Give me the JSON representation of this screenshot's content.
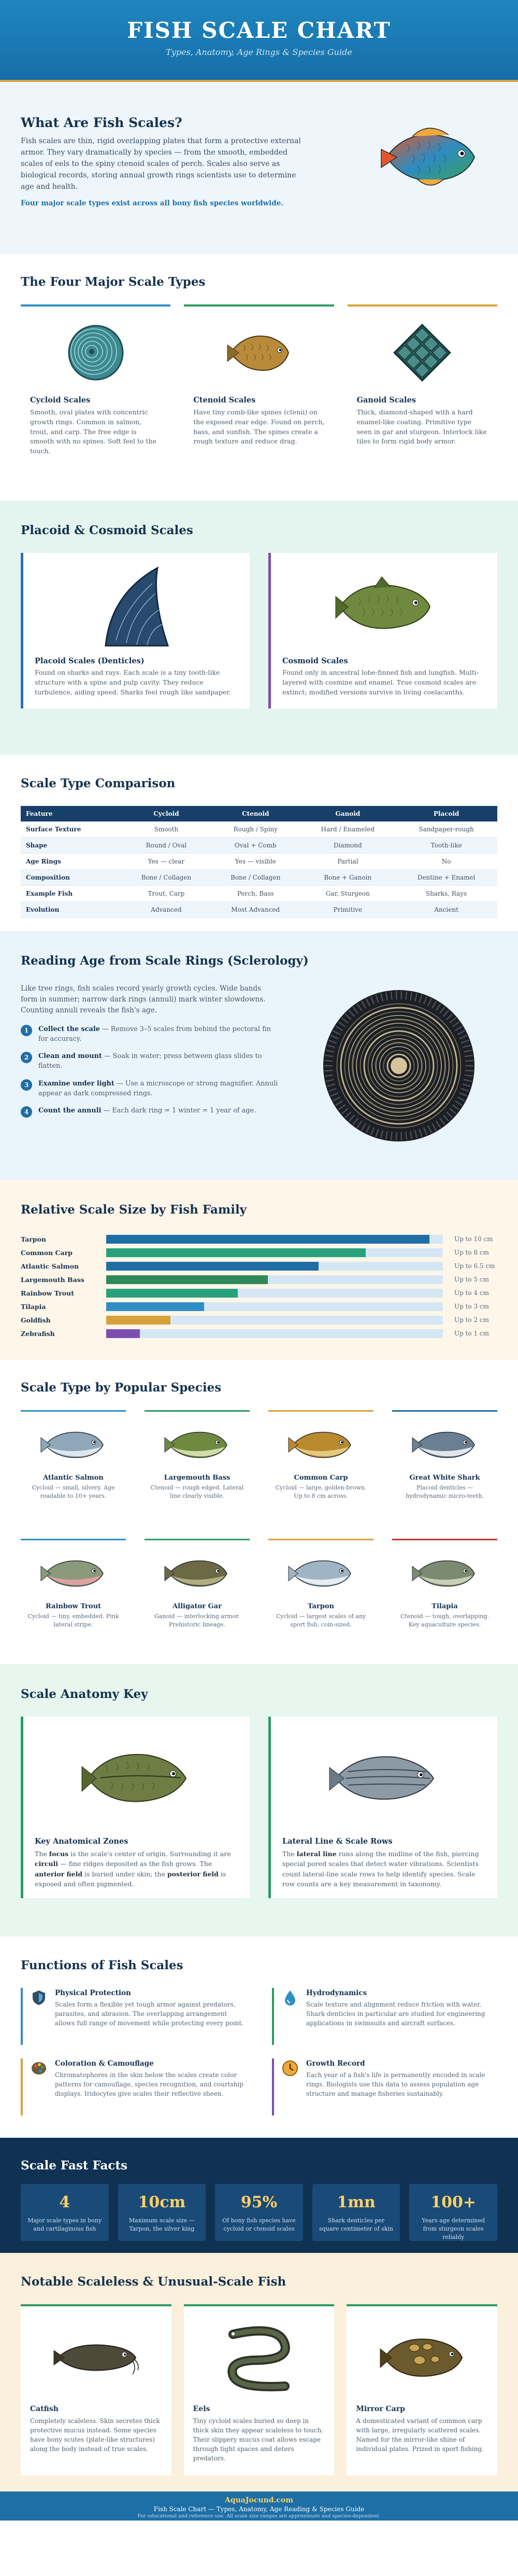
{
  "header": {
    "title": "FISH SCALE CHART",
    "subtitle": "Types, Anatomy, Age Rings & Species Guide"
  },
  "intro": {
    "title": "What Are Fish Scales?",
    "text": "Fish scales are thin, rigid overlapping plates that form a protective external armor. They vary dramatically by species — from the smooth, embedded scales of eels to the spiny ctenoid scales of perch. Scales also serve as biological records, storing annual growth rings scientists use to determine age and health.",
    "note": "Four major scale types exist across all bony fish species worldwide.",
    "image": "tropical-fish-illustration"
  },
  "types": {
    "title": "The Four Major Scale Types",
    "cards": [
      {
        "name": "Cycloid Scales",
        "desc": "Smooth, oval plates with concentric growth rings. Common in salmon, trout, and carp. The free edge is smooth with no spines. Soft feel to the touch.",
        "color": "#2f8fc4",
        "icon": "cycloid-scale-icon"
      },
      {
        "name": "Ctenoid Scales",
        "desc": "Have tiny comb-like spines (ctenii) on the exposed rear edge. Found on perch, bass, and sunfish. The spines create a rough texture and reduce drag.",
        "color": "#2e9a64",
        "icon": "ctenoid-fish-icon"
      },
      {
        "name": "Ganoid Scales",
        "desc": "Thick, diamond-shaped with a hard enamel-like coating. Primitive type seen in gar and sturgeon. Interlock like tiles to form rigid body armor.",
        "color": "#d7a23c",
        "icon": "ganoid-scale-icon"
      }
    ]
  },
  "placoid": {
    "title": "Placoid & Cosmoid Scales",
    "cards": [
      {
        "name": "Placoid Scales (Denticles)",
        "desc": "Found on sharks and rays. Each scale is a tiny tooth-like structure with a spine and pulp cavity. They reduce turbulence, aiding speed. Sharks feel rough like sandpaper.",
        "color": "#2e6fb8",
        "icon": "shark-denticle-icon"
      },
      {
        "name": "Cosmoid Scales",
        "desc": "Found only in ancestral lobe-finned fish and lungfish. Multi-layered with cosmine and enamel. True cosmoid scales are extinct; modified versions survive in living coelacanths.",
        "color": "#7a4fb0",
        "icon": "lobe-finned-fish-icon"
      }
    ]
  },
  "compare": {
    "title": "Scale Type Comparison",
    "headers": [
      "Feature",
      "Cycloid",
      "Ctenoid",
      "Ganoid",
      "Placoid"
    ],
    "rows": [
      [
        "Surface Texture",
        "Smooth",
        "Rough / Spiny",
        "Hard / Enameled",
        "Sandpaper-rough"
      ],
      [
        "Shape",
        "Round / Oval",
        "Oval + Comb",
        "Diamond",
        "Tooth-like"
      ],
      [
        "Age Rings",
        "Yes — clear",
        "Yes — visible",
        "Partial",
        "No"
      ],
      [
        "Composition",
        "Bone / Collagen",
        "Bone / Collagen",
        "Bone + Ganoin",
        "Dentine + Enamel"
      ],
      [
        "Example Fish",
        "Trout, Carp",
        "Perch, Bass",
        "Gar, Sturgeon",
        "Sharks, Rays"
      ],
      [
        "Evolution",
        "Advanced",
        "Most Advanced",
        "Primitive",
        "Ancient"
      ]
    ]
  },
  "rings": {
    "title": "Reading Age from Scale Rings (Sclerology)",
    "intro": "Like tree rings, fish scales record yearly growth cycles. Wide bands form in summer; narrow dark rings (annuli) mark winter slowdowns. Counting annuli reveals the fish's age.",
    "steps": [
      {
        "n": "1",
        "title": "Collect the scale",
        "text": " — Remove 3–5 scales from behind the pectoral fin for accuracy."
      },
      {
        "n": "2",
        "title": "Clean and mount",
        "text": " — Soak in water; press between glass slides to flatten."
      },
      {
        "n": "3",
        "title": "Examine under light",
        "text": " — Use a microscope or strong magnifier. Annuli appear as dark compressed rings."
      },
      {
        "n": "4",
        "title": "Count the annuli",
        "text": " — Each dark ring = 1 winter = 1 year of age."
      }
    ],
    "image": "scale-rings-illustration"
  },
  "sizes": {
    "title": "Relative Scale Size by Fish Family",
    "bars": [
      {
        "label": "Tarpon",
        "value": 0.96,
        "text": "Up to 10 cm",
        "color": "#1f6ea6"
      },
      {
        "label": "Common Carp",
        "value": 0.77,
        "text": "Up to 8 cm",
        "color": "#27a27c"
      },
      {
        "label": "Atlantic Salmon",
        "value": 0.63,
        "text": "Up to 6.5 cm",
        "color": "#1f6ea6"
      },
      {
        "label": "Largemouth Bass",
        "value": 0.48,
        "text": "Up to 5 cm",
        "color": "#2e8a58"
      },
      {
        "label": "Rainbow Trout",
        "value": 0.39,
        "text": "Up to 4 cm",
        "color": "#27a27c"
      },
      {
        "label": "Tilapia",
        "value": 0.29,
        "text": "Up to 3 cm",
        "color": "#2f8fc4"
      },
      {
        "label": "Goldfish",
        "value": 0.19,
        "text": "Up to 2 cm",
        "color": "#d7a23c"
      },
      {
        "label": "Zebrafish",
        "value": 0.1,
        "text": "Up to 1 cm",
        "color": "#7a4fb0"
      }
    ]
  },
  "species": {
    "title": "Scale Type by Popular Species",
    "items": [
      {
        "name": "Atlantic Salmon",
        "desc": "Cycloid — small, silvery. Age readable to 10+ years.",
        "color": "#2f8fc4",
        "body": "#8fa7b8",
        "belly": "#e8eef2"
      },
      {
        "name": "Largemouth Bass",
        "desc": "Ctenoid — rough edged. Lateral line clearly visible.",
        "color": "#2e9a64",
        "body": "#6f8a3e",
        "belly": "#d9e4b6"
      },
      {
        "name": "Common Carp",
        "desc": "Cycloid — large, golden-brown. Up to 8 cm across.",
        "color": "#d7a23c",
        "body": "#b98a2e",
        "belly": "#e9cf8a"
      },
      {
        "name": "Great White Shark",
        "desc": "Placoid denticles — hydrodynamic micro-teeth.",
        "color": "#1f6ea6",
        "body": "#6b7f92",
        "belly": "#eef2f5"
      },
      {
        "name": "Rainbow Trout",
        "desc": "Cycloid — tiny, embedded. Pink lateral stripe.",
        "color": "#2f8fc4",
        "body": "#8a9a7a",
        "belly": "#e6a3a3"
      },
      {
        "name": "Alligator Gar",
        "desc": "Ganoid — interlocking armor. Prehistoric lineage.",
        "color": "#2e9a64",
        "body": "#6b6a45",
        "belly": "#b9b58a"
      },
      {
        "name": "Tarpon",
        "desc": "Cycloid — largest scales of any sport fish, coin-sized.",
        "color": "#d7a23c",
        "body": "#9fb4c4",
        "belly": "#eef3f6"
      },
      {
        "name": "Tilapia",
        "desc": "Ctenoid — tough, overlapping. Key aquaculture species.",
        "color": "#c0392b",
        "body": "#7d8a72",
        "belly": "#cfd6bd"
      }
    ]
  },
  "anatomy": {
    "title": "Scale Anatomy Key",
    "cards": [
      {
        "name": "Key Anatomical Zones",
        "focus": "focus",
        "anterior": "anterior field",
        "posterior": "posterior field",
        "circuli": "circuli"
      },
      {
        "name": "Lateral Line & Scale Rows",
        "lateral": "lateral line"
      }
    ],
    "card1_parts": [
      "The ",
      "focus",
      " is the scale's center of origin. Surrounding it are ",
      "circuli",
      " — fine ridges deposited as the fish grows. The ",
      "anterior field",
      " is buried under skin; the ",
      "posterior field",
      " is exposed and often pigmented."
    ],
    "card2_parts": [
      "The ",
      "lateral line",
      " runs along the midline of the fish, piercing special pored scales that detect water vibrations. Scientists count lateral-line scale rows to help identify species. Scale row counts are a key measurement in taxonomy."
    ]
  },
  "functions": {
    "title": "Functions of Fish Scales",
    "items": [
      {
        "name": "Physical Protection",
        "desc": "Scales form a flexible yet tough armor against predators, parasites, and abrasion. The overlapping arrangement allows full range of movement while protecting every point.",
        "color": "#2f8fc4",
        "icon": "shield-icon"
      },
      {
        "name": "Hydrodynamics",
        "desc": "Scale texture and alignment reduce friction with water. Shark denticles in particular are studied for engineering applications in swimsuits and aircraft surfaces.",
        "color": "#2e9a64",
        "icon": "water-drop-icon"
      },
      {
        "name": "Coloration & Camouflage",
        "desc": "Chromatophores in the skin below the scales create color patterns for camouflage, species recognition, and courtship displays. Iridocytes give scales their reflective sheen.",
        "color": "#d7a23c",
        "icon": "palette-icon"
      },
      {
        "name": "Growth Record",
        "desc": "Each year of a fish's life is permanently encoded in scale rings. Biologists use this data to assess population age structure and manage fisheries sustainably.",
        "color": "#7a4fb0",
        "icon": "growth-clock-icon"
      }
    ]
  },
  "facts": {
    "title": "Scale Fast Facts",
    "items": [
      {
        "n": "4",
        "l": "Major scale types in bony and cartilaginous fish"
      },
      {
        "n": "10cm",
        "l": "Maximum scale size — Tarpon, the silver king"
      },
      {
        "n": "95%",
        "l": "Of bony fish species have cycloid or ctenoid scales"
      },
      {
        "n": "1mn",
        "l": "Shark denticles per square centimeter of skin"
      },
      {
        "n": "100+",
        "l": "Years age determined from sturgeon scales reliably"
      }
    ]
  },
  "scaleless": {
    "title": "Notable Scaleless & Unusual-Scale Fish",
    "cards": [
      {
        "name": "Catfish",
        "desc": "Completely scaleless. Skin secretes thick protective mucus instead. Some species have bony scutes (plate-like structures) along the body instead of true scales.",
        "color": "#2e9a64",
        "icon": "catfish-icon"
      },
      {
        "name": "Eels",
        "desc": "Tiny cycloid scales buried so deep in thick skin they appear scaleless to touch. Their slippery mucus coat allows escape through tight spaces and deters predators.",
        "color": "#2e9a64",
        "icon": "eel-icon"
      },
      {
        "name": "Mirror Carp",
        "desc": "A domesticated variant of common carp with large, irregularly scattered scales. Named for the mirror-like shine of individual plates. Prized in sport fishing.",
        "color": "#2e9a64",
        "icon": "mirror-carp-icon"
      }
    ]
  },
  "footer": {
    "brand": "AquaJocund.com",
    "line1": "Fish Scale Chart — Types, Anatomy, Age Reading & Species Guide",
    "line2": "For educational and reference use. All scale size ranges are approximate and species-dependent."
  }
}
